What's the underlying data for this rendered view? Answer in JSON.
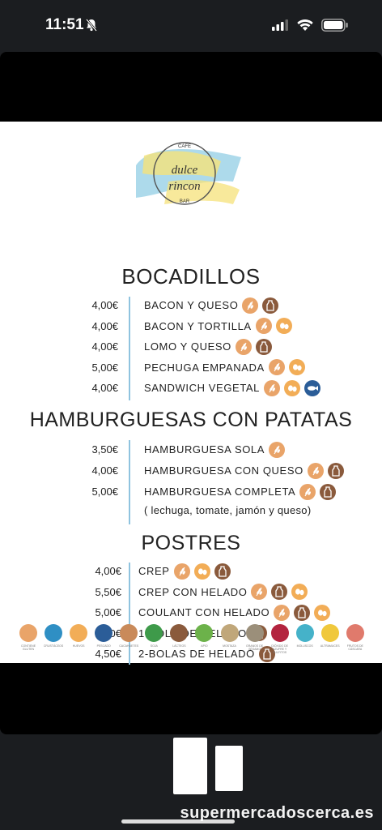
{
  "status": {
    "time": "11:51"
  },
  "logo": {
    "top": "CAFE",
    "name1": "dulce",
    "name2": "rincon",
    "bottom": "BAR"
  },
  "sections": {
    "bocadillos": {
      "title": "BOCADILLOS",
      "items": [
        {
          "price": "4,00€",
          "name": "BACON Y QUESO",
          "allergens": [
            "gluten",
            "milk"
          ]
        },
        {
          "price": "4,00€",
          "name": "BACON Y TORTILLA",
          "allergens": [
            "gluten",
            "egg"
          ]
        },
        {
          "price": "4,00€",
          "name": "LOMO Y QUESO",
          "allergens": [
            "gluten",
            "milk"
          ]
        },
        {
          "price": "5,00€",
          "name": "PECHUGA EMPANADA",
          "allergens": [
            "gluten",
            "egg"
          ]
        },
        {
          "price": "4,00€",
          "name": "SANDWICH VEGETAL",
          "allergens": [
            "gluten",
            "egg",
            "fish"
          ]
        }
      ]
    },
    "hamburguesas": {
      "title": "HAMBURGUESAS CON PATATAS",
      "items": [
        {
          "price": "3,50€",
          "name": "HAMBURGUESA SOLA",
          "allergens": [
            "gluten"
          ]
        },
        {
          "price": "4,00€",
          "name": "HAMBURGUESA CON QUESO",
          "allergens": [
            "gluten",
            "milk"
          ]
        },
        {
          "price": "5,00€",
          "name": "HAMBURGUESA COMPLETA",
          "allergens": [
            "gluten",
            "milk"
          ]
        }
      ],
      "note": "( lechuga, tomate, jamón y queso)"
    },
    "postres": {
      "title": "POSTRES",
      "items": [
        {
          "price": "4,00€",
          "name": "CREP",
          "allergens": [
            "gluten",
            "egg",
            "milk"
          ]
        },
        {
          "price": "5,50€",
          "name": "CREP CON HELADO",
          "allergens": [
            "gluten",
            "milk",
            "egg"
          ]
        },
        {
          "price": "5,00€",
          "name": "COULANT CON HELADO",
          "allergens": [
            "gluten",
            "milk",
            "egg"
          ]
        },
        {
          "price": "2,50€",
          "name": "1-BOLA DE HELADO",
          "allergens": [
            "milk"
          ]
        },
        {
          "price": "4,50€",
          "name": "2-BOLAS DE HELADO",
          "allergens": [
            "milk"
          ]
        }
      ]
    }
  },
  "legend": [
    {
      "label": "CONTIENE GLUTEN",
      "color": "#e9a469"
    },
    {
      "label": "CRUSTÁCEOS",
      "color": "#2f8fc4"
    },
    {
      "label": "HUEVOS",
      "color": "#f2ad57"
    },
    {
      "label": "PESCADO",
      "color": "#2b5d98"
    },
    {
      "label": "CACAHUETES",
      "color": "#c98a5a"
    },
    {
      "label": "SOJA",
      "color": "#3e9a4a"
    },
    {
      "label": "LÁCTEOS",
      "color": "#8a5a3c"
    },
    {
      "label": "APIO",
      "color": "#6cb24a"
    },
    {
      "label": "MOSTAZA",
      "color": "#c0a77a"
    },
    {
      "label": "GRANOS DE SÉSAMO",
      "color": "#9b8f7a"
    },
    {
      "label": "DIÓXIDO DE AZUFRE Y SULFITOS",
      "color": "#b3243f"
    },
    {
      "label": "MOLUSCOS",
      "color": "#45b2c9"
    },
    {
      "label": "ALTRAMUCES",
      "color": "#f0c83c"
    },
    {
      "label": "FRUTOS DE CÁSCARA",
      "color": "#e07a6c"
    }
  ],
  "watermark": "supermercadoscerca.es"
}
